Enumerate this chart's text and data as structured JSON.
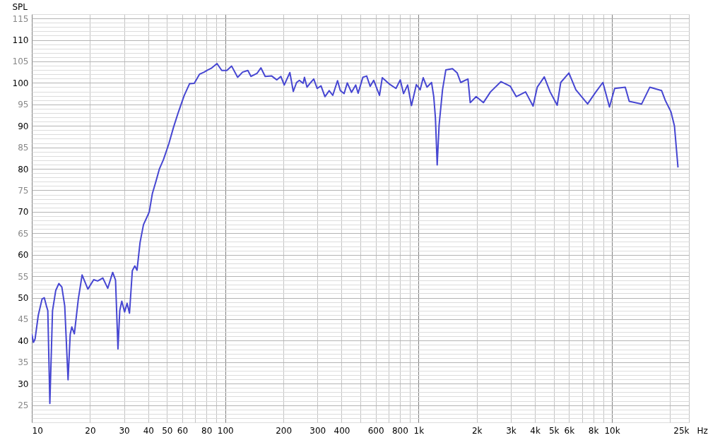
{
  "chart_data": {
    "type": "line",
    "ylabel": "SPL",
    "log": "x",
    "grid": true,
    "xlim": [
      10,
      25000
    ],
    "ylim": [
      21,
      116
    ],
    "xticks": [
      10,
      20,
      30,
      40,
      50,
      60,
      {
        "value": 70,
        "label": null
      },
      80,
      {
        "value": 90,
        "label": null
      },
      100,
      200,
      300,
      400,
      {
        "value": 500,
        "label": null
      },
      600,
      {
        "value": 700,
        "label": null
      },
      800,
      {
        "value": 900,
        "label": null
      },
      {
        "value": 1000,
        "label": "1k"
      },
      {
        "value": 2000,
        "label": "2k"
      },
      {
        "value": 3000,
        "label": "3k"
      },
      {
        "value": 4000,
        "label": "4k"
      },
      {
        "value": 5000,
        "label": "5k"
      },
      {
        "value": 6000,
        "label": "6k"
      },
      {
        "value": 7000,
        "label": null
      },
      {
        "value": 8000,
        "label": "8k"
      },
      {
        "value": 9000,
        "label": null
      },
      {
        "value": 10000,
        "label": "10k"
      },
      {
        "value": 20000,
        "label": null
      },
      {
        "value": 25000,
        "label": "25k"
      }
    ],
    "xlabel": "Hz",
    "yticks": [
      {
        "value": 22,
        "label": null
      },
      {
        "value": 23,
        "label": null
      },
      {
        "value": 24,
        "label": null
      },
      25,
      {
        "value": 26,
        "label": null
      },
      {
        "value": 27,
        "label": null
      },
      {
        "value": 28,
        "label": null
      },
      {
        "value": 29,
        "label": null
      },
      30,
      {
        "value": 31,
        "label": null
      },
      {
        "value": 32,
        "label": null
      },
      {
        "value": 33,
        "label": null
      },
      {
        "value": 34,
        "label": null
      },
      35,
      {
        "value": 36,
        "label": null
      },
      {
        "value": 37,
        "label": null
      },
      {
        "value": 38,
        "label": null
      },
      {
        "value": 39,
        "label": null
      },
      40,
      {
        "value": 41,
        "label": null
      },
      {
        "value": 42,
        "label": null
      },
      {
        "value": 43,
        "label": null
      },
      {
        "value": 44,
        "label": null
      },
      45,
      {
        "value": 46,
        "label": null
      },
      {
        "value": 47,
        "label": null
      },
      {
        "value": 48,
        "label": null
      },
      {
        "value": 49,
        "label": null
      },
      50,
      {
        "value": 51,
        "label": null
      },
      {
        "value": 52,
        "label": null
      },
      {
        "value": 53,
        "label": null
      },
      {
        "value": 54,
        "label": null
      },
      55,
      {
        "value": 56,
        "label": null
      },
      {
        "value": 57,
        "label": null
      },
      {
        "value": 58,
        "label": null
      },
      {
        "value": 59,
        "label": null
      },
      60,
      {
        "value": 61,
        "label": null
      },
      {
        "value": 62,
        "label": null
      },
      {
        "value": 63,
        "label": null
      },
      {
        "value": 64,
        "label": null
      },
      65,
      {
        "value": 66,
        "label": null
      },
      {
        "value": 67,
        "label": null
      },
      {
        "value": 68,
        "label": null
      },
      {
        "value": 69,
        "label": null
      },
      70,
      {
        "value": 71,
        "label": null
      },
      {
        "value": 72,
        "label": null
      },
      {
        "value": 73,
        "label": null
      },
      {
        "value": 74,
        "label": null
      },
      75,
      {
        "value": 76,
        "label": null
      },
      {
        "value": 77,
        "label": null
      },
      {
        "value": 78,
        "label": null
      },
      {
        "value": 79,
        "label": null
      },
      80,
      {
        "value": 81,
        "label": null
      },
      {
        "value": 82,
        "label": null
      },
      {
        "value": 83,
        "label": null
      },
      {
        "value": 84,
        "label": null
      },
      85,
      {
        "value": 86,
        "label": null
      },
      {
        "value": 87,
        "label": null
      },
      {
        "value": 88,
        "label": null
      },
      {
        "value": 89,
        "label": null
      },
      90,
      {
        "value": 91,
        "label": null
      },
      {
        "value": 92,
        "label": null
      },
      {
        "value": 93,
        "label": null
      },
      {
        "value": 94,
        "label": null
      },
      95,
      {
        "value": 96,
        "label": null
      },
      {
        "value": 97,
        "label": null
      },
      {
        "value": 98,
        "label": null
      },
      {
        "value": 99,
        "label": null
      },
      100,
      {
        "value": 101,
        "label": null
      },
      {
        "value": 102,
        "label": null
      },
      {
        "value": 103,
        "label": null
      },
      {
        "value": 104,
        "label": null
      },
      105,
      {
        "value": 106,
        "label": null
      },
      {
        "value": 107,
        "label": null
      },
      {
        "value": 108,
        "label": null
      },
      {
        "value": 109,
        "label": null
      },
      110,
      {
        "value": 111,
        "label": null
      },
      {
        "value": 112,
        "label": null
      },
      {
        "value": 113,
        "label": null
      },
      {
        "value": 114,
        "label": null
      },
      115,
      {
        "value": 116,
        "label": null
      }
    ],
    "series": [
      {
        "color": "#4646d2",
        "x": [
          10,
          10.2,
          10.4,
          10.8,
          11.3,
          11.6,
          11.9,
          12.1,
          12.4,
          12.8,
          13.3,
          13.8,
          14.3,
          14.8,
          15.4,
          15.8,
          16.1,
          16.6,
          17.4,
          18.2,
          19.5,
          20.9,
          21.9,
          23.3,
          24.7,
          26.2,
          27.1,
          27.9,
          28.5,
          29.2,
          30.2,
          31.1,
          32.0,
          33.1,
          34.1,
          35.0,
          36.3,
          37.8,
          39.8,
          40.5,
          42.0,
          43.8,
          45.7,
          48.0,
          51.1,
          54.0,
          57.0,
          61.3,
          65.4,
          69.2,
          73.6,
          77.8,
          81.2,
          84.7,
          90.7,
          96.0,
          102,
          108,
          116,
          123,
          131,
          136,
          146,
          153,
          161,
          174,
          185,
          194,
          202,
          216,
          225,
          234,
          242,
          253,
          257,
          265,
          277,
          287,
          299,
          313,
          328,
          345,
          360,
          381,
          394,
          412,
          428,
          450,
          473,
          487,
          515,
          539,
          562,
          586,
          628,
          649,
          703,
          764,
          804,
          836,
          878,
          919,
          974,
          1019,
          1057,
          1105,
          1167,
          1198,
          1222,
          1248,
          1277,
          1330,
          1383,
          1497,
          1584,
          1651,
          1800,
          1850,
          1985,
          2163,
          2354,
          2668,
          2982,
          3198,
          3575,
          3909,
          4108,
          4467,
          4789,
          5209,
          5433,
          5990,
          6506,
          7483,
          8257,
          8974,
          9708,
          10320,
          11715,
          12285,
          14240,
          15700,
          18060,
          18840,
          20170,
          21040,
          21950
        ],
        "values": [
          41.5,
          39.6,
          40.4,
          45.9,
          49.7,
          50.0,
          48.1,
          47.0,
          25.4,
          47.0,
          51.7,
          53.3,
          52.5,
          48.1,
          30.9,
          41.5,
          43.2,
          41.6,
          49.7,
          55.3,
          52.0,
          54.2,
          53.9,
          54.6,
          52.2,
          55.9,
          54.1,
          38.1,
          47.0,
          49.2,
          46.7,
          48.7,
          46.4,
          56.3,
          57.4,
          56.4,
          62.9,
          67.0,
          69.2,
          70.0,
          74.2,
          77.0,
          80.0,
          82.2,
          85.8,
          89.6,
          92.9,
          97.0,
          99.8,
          99.9,
          102.0,
          102.5,
          103.0,
          103.4,
          104.5,
          102.9,
          102.9,
          103.9,
          101.3,
          102.5,
          102.9,
          101.5,
          102.2,
          103.5,
          101.5,
          101.6,
          100.7,
          101.5,
          99.5,
          102.4,
          98.0,
          100.1,
          100.6,
          99.9,
          101.3,
          99.0,
          100.1,
          100.9,
          98.7,
          99.3,
          96.8,
          98.2,
          97.1,
          100.5,
          98.2,
          97.5,
          100.0,
          97.8,
          99.5,
          97.6,
          101.3,
          101.6,
          99.2,
          100.6,
          97.1,
          101.2,
          99.8,
          98.7,
          100.7,
          97.5,
          99.5,
          94.7,
          99.6,
          98.4,
          101.2,
          99.0,
          100.1,
          96.8,
          91.9,
          80.9,
          90.2,
          98.4,
          103.0,
          103.3,
          102.3,
          100.1,
          100.9,
          95.4,
          96.8,
          95.4,
          97.9,
          100.3,
          99.2,
          96.8,
          97.9,
          94.6,
          99.0,
          101.4,
          97.9,
          94.8,
          100.1,
          102.3,
          98.4,
          95.1,
          97.9,
          100.1,
          94.4,
          98.7,
          99.0,
          95.7,
          95.1,
          99.0,
          98.2,
          96.0,
          93.3,
          90.0,
          80.3
        ]
      }
    ]
  }
}
